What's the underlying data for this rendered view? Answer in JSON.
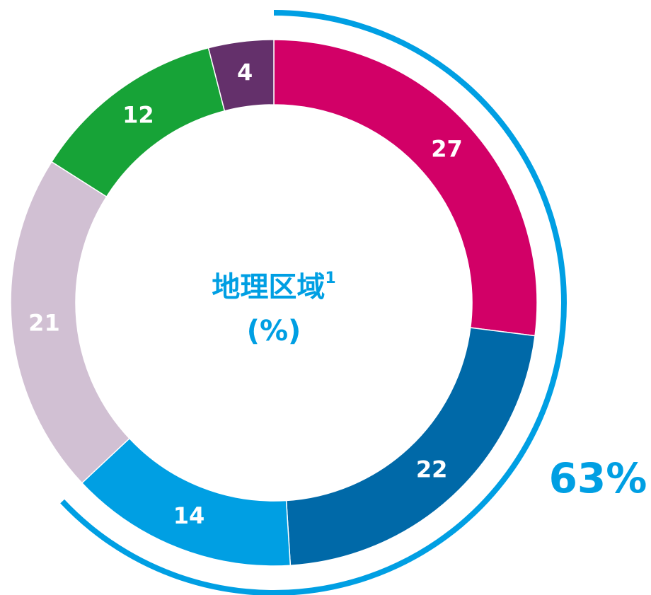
{
  "chart_data": {
    "type": "donut",
    "title": "地理区域",
    "title_footnote": "1",
    "subtitle": "(%)",
    "values": [
      27,
      22,
      14,
      21,
      12,
      4
    ],
    "colors": [
      "#d20067",
      "#0069a8",
      "#009fe3",
      "#d1c0d3",
      "#17a337",
      "#64306b"
    ],
    "annotation": {
      "value": 63,
      "label": "63%",
      "color": "#009fe3"
    }
  }
}
